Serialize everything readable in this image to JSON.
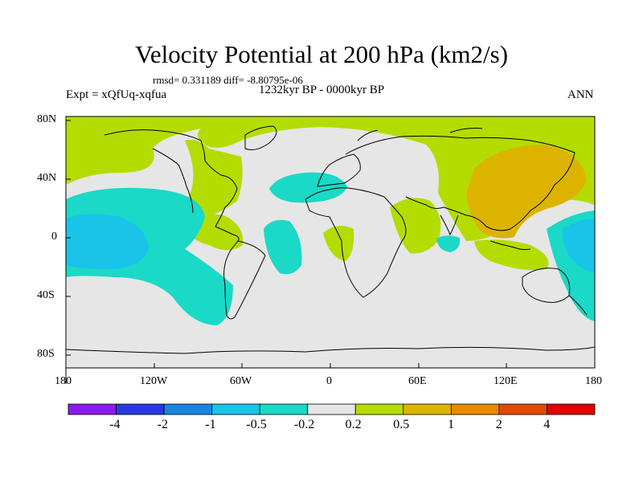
{
  "title": "Velocity Potential at 200 hPa (km2/s)",
  "stats": "rmsd= 0.331189 diff= -8.80795e-06",
  "expt": "Expt = xQfUq-xqfua",
  "period": "1232kyr BP - 0000kyr BP",
  "season": "ANN",
  "lat_ticks": [
    "80N",
    "40N",
    "0",
    "40S",
    "80S"
  ],
  "lon_ticks": [
    "180",
    "120W",
    "60W",
    "0",
    "60E",
    "120E",
    "180"
  ],
  "colorbar": {
    "labels": [
      "-4",
      "-2",
      "-1",
      "-0.5",
      "-0.2",
      "0.2",
      "0.5",
      "1",
      "2",
      "4"
    ],
    "colors": [
      "#8a1ae8",
      "#2a38e0",
      "#1a84e0",
      "#1ac3e8",
      "#1ad9c6",
      "#e6e6e6",
      "#b4dc00",
      "#dcb400",
      "#e68a00",
      "#e04a00",
      "#e00000"
    ]
  },
  "field_colors": {
    "neutral": "#e6e6e6",
    "weak_positive": "#b4dc00",
    "moderate_positive": "#dcb400",
    "weak_negative": "#1ad9c6",
    "moderate_negative": "#1ac3e8"
  }
}
